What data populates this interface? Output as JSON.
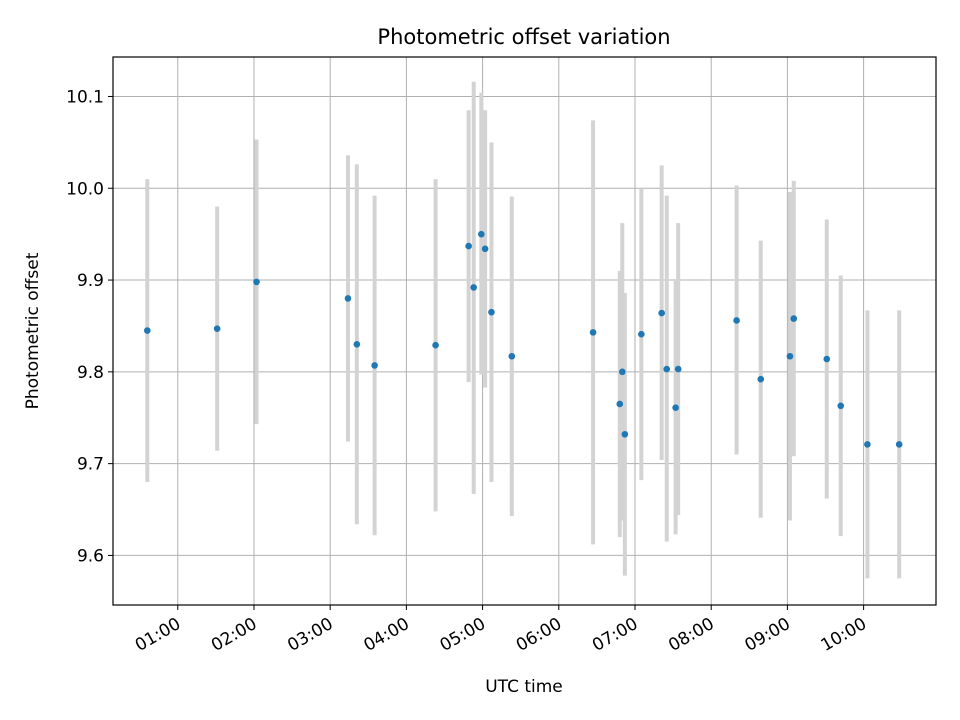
{
  "chart_data": {
    "type": "scatter",
    "title": "Photometric offset variation",
    "xlabel": "UTC time",
    "ylabel": "Photometric offset",
    "x_unit": "time of day (HH:MM, UTC)",
    "xlim": [
      "00:09",
      "10:57"
    ],
    "ylim": [
      9.546,
      10.143
    ],
    "x_ticks": [
      "01:00",
      "02:00",
      "03:00",
      "04:00",
      "05:00",
      "06:00",
      "07:00",
      "08:00",
      "09:00",
      "10:00"
    ],
    "y_ticks": [
      "9.6",
      "9.7",
      "9.8",
      "9.9",
      "10.0",
      "10.1"
    ],
    "grid": true,
    "colors": {
      "point": "#1f77b4",
      "errorbar": "#d3d3d3",
      "grid": "#b0b0b0"
    },
    "points": [
      {
        "x": "00:36",
        "y": 9.845,
        "low": 9.68,
        "high": 10.01
      },
      {
        "x": "01:31",
        "y": 9.847,
        "low": 9.714,
        "high": 9.98
      },
      {
        "x": "02:02",
        "y": 9.898,
        "low": 9.743,
        "high": 10.053
      },
      {
        "x": "03:14",
        "y": 9.88,
        "low": 9.724,
        "high": 10.036
      },
      {
        "x": "03:21",
        "y": 9.83,
        "low": 9.634,
        "high": 10.026
      },
      {
        "x": "03:35",
        "y": 9.807,
        "low": 9.622,
        "high": 9.992
      },
      {
        "x": "04:23",
        "y": 9.829,
        "low": 9.648,
        "high": 10.01
      },
      {
        "x": "04:49",
        "y": 9.937,
        "low": 9.789,
        "high": 10.085
      },
      {
        "x": "04:53",
        "y": 9.892,
        "low": 9.667,
        "high": 10.116
      },
      {
        "x": "04:59",
        "y": 9.95,
        "low": 9.797,
        "high": 10.104
      },
      {
        "x": "05:02",
        "y": 9.934,
        "low": 9.783,
        "high": 10.085
      },
      {
        "x": "05:07",
        "y": 9.865,
        "low": 9.68,
        "high": 10.05
      },
      {
        "x": "05:23",
        "y": 9.817,
        "low": 9.643,
        "high": 9.991
      },
      {
        "x": "06:27",
        "y": 9.843,
        "low": 9.612,
        "high": 10.074
      },
      {
        "x": "06:48",
        "y": 9.765,
        "low": 9.62,
        "high": 9.91
      },
      {
        "x": "06:50",
        "y": 9.8,
        "low": 9.638,
        "high": 9.962
      },
      {
        "x": "06:52",
        "y": 9.732,
        "low": 9.578,
        "high": 9.886
      },
      {
        "x": "07:05",
        "y": 9.841,
        "low": 9.682,
        "high": 10.0
      },
      {
        "x": "07:21",
        "y": 9.864,
        "low": 9.704,
        "high": 10.025
      },
      {
        "x": "07:25",
        "y": 9.803,
        "low": 9.615,
        "high": 9.992
      },
      {
        "x": "07:32",
        "y": 9.761,
        "low": 9.623,
        "high": 9.899
      },
      {
        "x": "07:34",
        "y": 9.803,
        "low": 9.644,
        "high": 9.962
      },
      {
        "x": "08:20",
        "y": 9.856,
        "low": 9.71,
        "high": 10.003
      },
      {
        "x": "08:39",
        "y": 9.792,
        "low": 9.641,
        "high": 9.943
      },
      {
        "x": "09:02",
        "y": 9.817,
        "low": 9.638,
        "high": 9.996
      },
      {
        "x": "09:05",
        "y": 9.858,
        "low": 9.708,
        "high": 10.008
      },
      {
        "x": "09:31",
        "y": 9.814,
        "low": 9.662,
        "high": 9.966
      },
      {
        "x": "09:42",
        "y": 9.763,
        "low": 9.621,
        "high": 9.905
      },
      {
        "x": "10:03",
        "y": 9.721,
        "low": 9.575,
        "high": 9.867
      },
      {
        "x": "10:28",
        "y": 9.721,
        "low": 9.575,
        "high": 9.867
      }
    ]
  }
}
